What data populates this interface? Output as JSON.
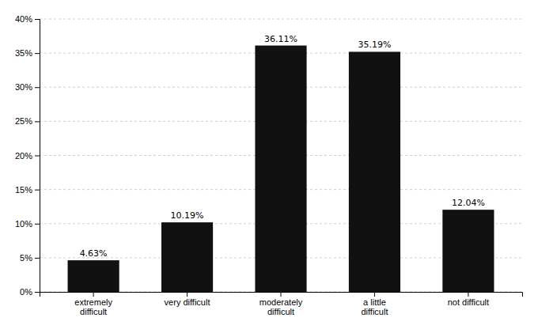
{
  "chart_data": {
    "type": "bar",
    "categories": [
      "extremely\ndifficult",
      "very difficult",
      "moderately\ndifficult",
      "a little\ndifficult",
      "not difficult"
    ],
    "values": [
      4.63,
      10.19,
      36.11,
      35.19,
      12.04
    ],
    "value_labels": [
      "4.63%",
      "10.19%",
      "36.11%",
      "35.19%",
      "12.04%"
    ],
    "data_labels": true,
    "color": "#111111",
    "ylim": [
      0,
      40
    ],
    "yticks": [
      {
        "value": 0,
        "label": "0%"
      },
      {
        "value": 5,
        "label": "5%"
      },
      {
        "value": 10,
        "label": "10%"
      },
      {
        "value": 15,
        "label": "15%"
      },
      {
        "value": 20,
        "label": "20%"
      },
      {
        "value": 25,
        "label": "25%"
      },
      {
        "value": 30,
        "label": "30%"
      },
      {
        "value": 35,
        "label": "35%"
      },
      {
        "value": 40,
        "label": "40%"
      }
    ],
    "grid": true
  }
}
